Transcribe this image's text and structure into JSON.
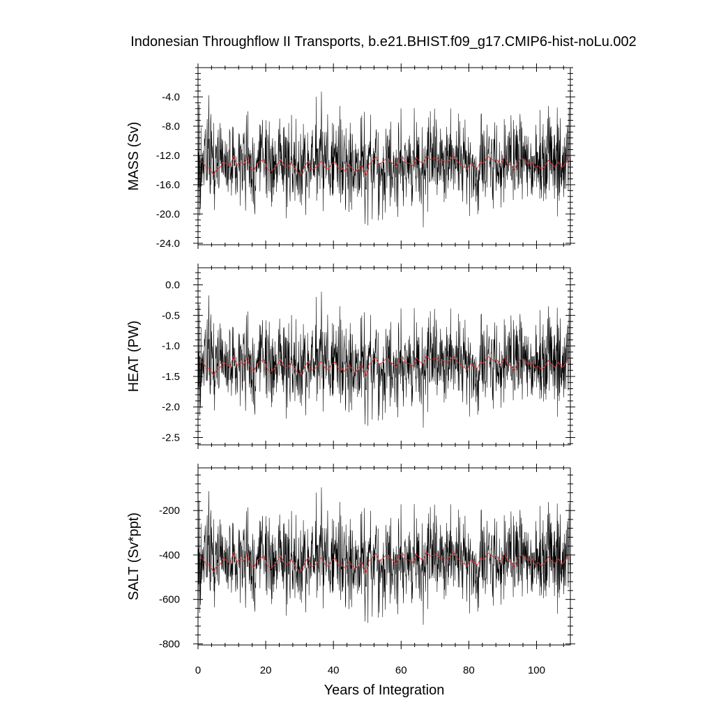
{
  "chart_data": {
    "type": "line",
    "title": "Indonesian Throughflow II Transports, b.e21.BHIST.f09_g17.CMIP6-hist-noLu.002",
    "xlabel": "Years of Integration",
    "xlim": [
      0,
      110
    ],
    "x_ticks": [
      "0",
      "20",
      "40",
      "60",
      "80",
      "100"
    ],
    "grid": false,
    "series_colors": {
      "monthly": "#000000",
      "annual": "#e03030"
    },
    "monthly_series": {
      "start_year": 0,
      "months": 1320,
      "seed": 20211
    },
    "annual_series": {
      "x": [
        0.5,
        1.5,
        2.5,
        3.5,
        4.5,
        5.5,
        6.5,
        7.5,
        8.5,
        9.5,
        10.5,
        11.5,
        12.5,
        13.5,
        14.5,
        15.5,
        16.5,
        17.5,
        18.5,
        19.5,
        20.5,
        21.5,
        22.5,
        23.5,
        24.5,
        25.5,
        26.5,
        27.5,
        28.5,
        29.5,
        30.5,
        31.5,
        32.5,
        33.5,
        34.5,
        35.5,
        36.5,
        37.5,
        38.5,
        39.5,
        40.5,
        41.5,
        42.5,
        43.5,
        44.5,
        45.5,
        46.5,
        47.5,
        48.5,
        49.5,
        50.5,
        51.5,
        52.5,
        53.5,
        54.5,
        55.5,
        56.5,
        57.5,
        58.5,
        59.5,
        60.5,
        61.5,
        62.5,
        63.5,
        64.5,
        65.5,
        66.5,
        67.5,
        68.5,
        69.5,
        70.5,
        71.5,
        72.5,
        73.5,
        74.5,
        75.5,
        76.5,
        77.5,
        78.5,
        79.5,
        80.5,
        81.5,
        82.5,
        83.5,
        84.5,
        85.5,
        86.5,
        87.5,
        88.5,
        89.5,
        90.5,
        91.5,
        92.5,
        93.5,
        94.5,
        95.5,
        96.5,
        97.5,
        98.5,
        99.5,
        100.5,
        101.5,
        102.5,
        103.5,
        104.5,
        105.5,
        106.5,
        107.5,
        108.5,
        109.5
      ],
      "anomaly": [
        0.1,
        0.05,
        -0.35,
        -0.3,
        -0.75,
        -0.45,
        -0.3,
        0.1,
        -0.1,
        -0.2,
        0.45,
        -0.15,
        0.05,
        -0.1,
        0.35,
        -0.35,
        -0.5,
        -0.05,
        0.1,
        0.2,
        -0.4,
        -0.55,
        -0.35,
        -0.05,
        0.2,
        -0.25,
        -0.3,
        0.05,
        -0.35,
        -0.6,
        -0.7,
        -0.2,
        0.1,
        -0.45,
        -0.35,
        -0.15,
        0.1,
        -0.3,
        -0.4,
        -0.05,
        0.05,
        -0.35,
        -0.3,
        -0.55,
        -0.1,
        -0.35,
        -0.6,
        -0.25,
        -0.2,
        -0.85,
        -0.1,
        0.1,
        0.35,
        -0.1,
        0.05,
        0.25,
        0.15,
        -0.05,
        -0.25,
        0.3,
        0.35,
        0.0,
        -0.05,
        -0.2,
        0.3,
        0.1,
        -0.1,
        0.45,
        0.2,
        0.25,
        0.3,
        0.05,
        0.15,
        -0.05,
        0.2,
        0.45,
        0.1,
        -0.1,
        -0.25,
        -0.4,
        -0.05,
        -0.15,
        -0.35,
        0.1,
        -0.05,
        0.4,
        0.3,
        0.1,
        0.15,
        -0.1,
        0.35,
        -0.05,
        -0.2,
        -0.45,
        0.05,
        0.25,
        0.2,
        -0.1,
        0.1,
        -0.3,
        -0.2,
        -0.4,
        -0.2,
        0.15,
        -0.1,
        -0.25,
        0.05,
        -0.3,
        -0.05,
        0.3
      ]
    },
    "panels": [
      {
        "id": "mass",
        "ylabel": "MASS (Sv)",
        "ylim": [
          -24.2,
          0.0
        ],
        "y_ticks": [
          "-4.0",
          "-8.0",
          "-12.0",
          "-16.0",
          "-20.0",
          "-24.0"
        ],
        "y_tick_values": [
          -4,
          -8,
          -12,
          -16,
          -20,
          -24
        ],
        "mean": -13.0,
        "monthly_spread": 3.0,
        "annual_scale": 2.2
      },
      {
        "id": "heat",
        "ylabel": "HEAT (PW)",
        "ylim": [
          -2.62,
          0.28
        ],
        "y_ticks": [
          "0.0",
          "-0.5",
          "-1.0",
          "-1.5",
          "-2.0",
          "-2.5"
        ],
        "y_tick_values": [
          0.0,
          -0.5,
          -1.0,
          -1.5,
          -2.0,
          -2.5
        ],
        "mean": -1.28,
        "monthly_spread": 0.36,
        "annual_scale": 0.27
      },
      {
        "id": "salt",
        "ylabel": "SALT (Sv*ppt)",
        "ylim": [
          -805,
          -8
        ],
        "y_ticks": [
          "-200",
          "-400",
          "-600",
          "-800"
        ],
        "y_tick_values": [
          -200,
          -400,
          -600,
          -800
        ],
        "mean": -420,
        "monthly_spread": 100,
        "annual_scale": 75
      }
    ]
  }
}
